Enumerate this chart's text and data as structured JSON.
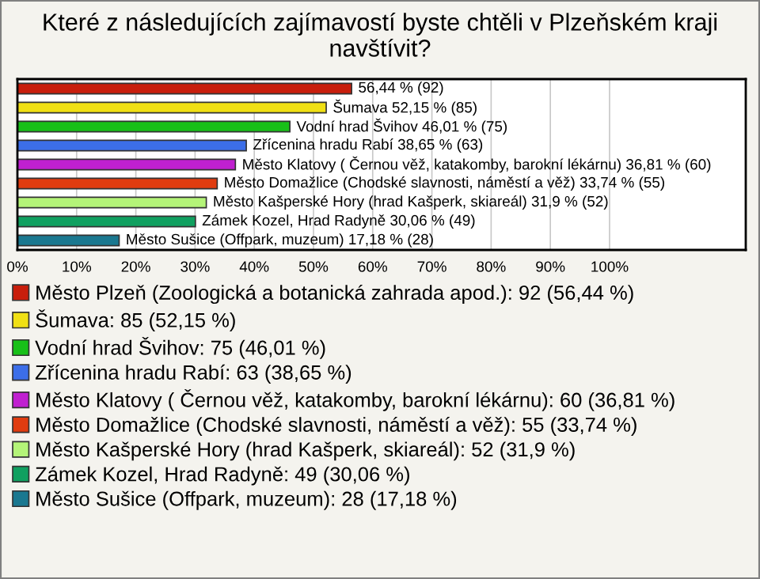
{
  "chart_data": {
    "type": "bar",
    "orientation": "horizontal",
    "title": "Které z následujících zajímavostí byste chtěli v Plzeňském kraji navštívit?",
    "categories": [
      null,
      null,
      null,
      null,
      null,
      null,
      null,
      null,
      null
    ],
    "series": [
      {
        "name": "Město Plzeň (Zoologická a botanická zahrada apod.): 92 (56,44 %)",
        "color": "#c81e0c",
        "values": [
          56.44,
          null,
          null,
          null,
          null,
          null,
          null,
          null,
          null
        ],
        "value_labels": [
          "56,44 % (92)",
          null,
          null,
          null,
          null,
          null,
          null,
          null,
          null
        ]
      },
      {
        "name": "Šumava: 85 (52,15 %)",
        "color": "#f0e014",
        "values": [
          null,
          52.15,
          null,
          null,
          null,
          null,
          null,
          null,
          null
        ],
        "value_labels": [
          null,
          "Šumava 52,15 % (85)",
          null,
          null,
          null,
          null,
          null,
          null,
          null
        ]
      },
      {
        "name": "Vodní hrad Švihov: 75 (46,01 %)",
        "color": "#18c018",
        "values": [
          null,
          null,
          46.01,
          null,
          null,
          null,
          null,
          null,
          null
        ],
        "value_labels": [
          null,
          null,
          "Vodní hrad Švihov 46,01 % (75)",
          null,
          null,
          null,
          null,
          null,
          null
        ]
      },
      {
        "name": "Zřícenina hradu Rabí: 63 (38,65 %)",
        "color": "#3c6ee8",
        "values": [
          null,
          null,
          null,
          38.65,
          null,
          null,
          null,
          null,
          null
        ],
        "value_labels": [
          null,
          null,
          null,
          "Zřícenina hradu Rabí 38,65 % (63)",
          null,
          null,
          null,
          null,
          null
        ]
      },
      {
        "name": "Město Klatovy ( Černou věž, katakomby, barokní lékárnu): 60 (36,81 %)",
        "color": "#c020d0",
        "values": [
          null,
          null,
          null,
          null,
          36.81,
          null,
          null,
          null,
          null
        ],
        "value_labels": [
          null,
          null,
          null,
          null,
          "Město Klatovy ( Černou věž, katakomby, barokní lékárnu) 36,81 % (60)",
          null,
          null,
          null,
          null
        ]
      },
      {
        "name": "Město Domažlice (Chodské slavnosti, náměstí a věž): 55 (33,74 %)",
        "color": "#e03c10",
        "values": [
          null,
          null,
          null,
          null,
          null,
          33.74,
          null,
          null,
          null
        ],
        "value_labels": [
          null,
          null,
          null,
          null,
          null,
          "Město Domažlice (Chodské slavnosti, náměstí a věž) 33,74 % (55)",
          null,
          null,
          null
        ]
      },
      {
        "name": "Město Kašperské Hory (hrad Kašperk, skiareál): 52 (31,9 %)",
        "color": "#b4f478",
        "values": [
          null,
          null,
          null,
          null,
          null,
          null,
          31.9,
          null,
          null
        ],
        "value_labels": [
          null,
          null,
          null,
          null,
          null,
          null,
          "Město Kašperské Hory (hrad Kašperk, skiareál) 31,9 % (52)",
          null,
          null
        ]
      },
      {
        "name": "Zámek Kozel, Hrad Radyně: 49 (30,06 %)",
        "color": "#10a060",
        "values": [
          null,
          null,
          null,
          null,
          null,
          null,
          null,
          30.06,
          null
        ],
        "value_labels": [
          null,
          null,
          null,
          null,
          null,
          null,
          null,
          "Zámek Kozel, Hrad Radyně 30,06 % (49)",
          null
        ]
      },
      {
        "name": "Město Sušice (Offpark, muzeum): 28 (17,18 %)",
        "color": "#1a7890",
        "values": [
          null,
          null,
          null,
          null,
          null,
          null,
          null,
          null,
          17.18
        ],
        "value_labels": [
          null,
          null,
          null,
          null,
          null,
          null,
          null,
          null,
          "Město Sušice (Offpark, muzeum) 17,18 % (28)"
        ]
      }
    ],
    "xlim": [
      0,
      123
    ],
    "xticks": [
      {
        "value": 0,
        "label": "0%"
      },
      {
        "value": 10,
        "label": "10%"
      },
      {
        "value": 20,
        "label": "20%"
      },
      {
        "value": 30,
        "label": "30%"
      },
      {
        "value": 40,
        "label": "40%"
      },
      {
        "value": 50,
        "label": "50%"
      },
      {
        "value": 60,
        "label": "60%"
      },
      {
        "value": 70,
        "label": "70%"
      },
      {
        "value": 80,
        "label": "80%"
      },
      {
        "value": 90,
        "label": "90%"
      },
      {
        "value": 100,
        "label": "100%"
      }
    ],
    "grid": "x",
    "legend": "bottom"
  }
}
